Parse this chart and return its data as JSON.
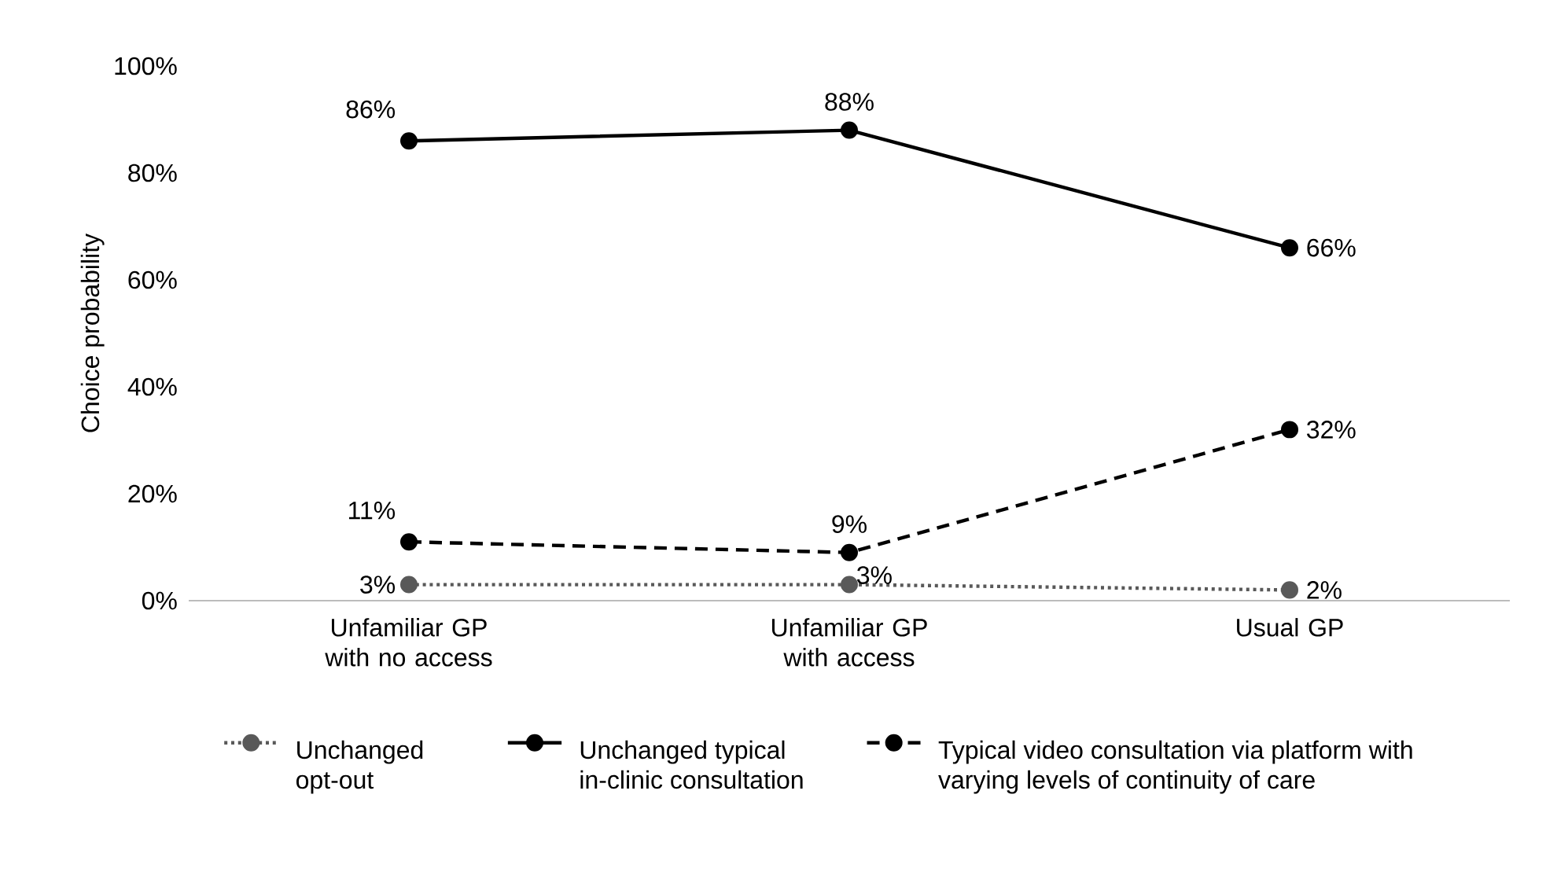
{
  "chart_data": {
    "type": "line",
    "ylabel": "Choice probability",
    "categories": [
      "Unfamiliar GP with no access",
      "Unfamiliar GP with access",
      "Usual GP"
    ],
    "series": [
      {
        "name": "Unchanged opt-out",
        "color": "#595959",
        "line_style": "dotted",
        "values": [
          3,
          3,
          2
        ],
        "value_labels": [
          "3%",
          "3%",
          "2%"
        ]
      },
      {
        "name": "Unchanged typical in-clinic consultation",
        "color": "#000000",
        "line_style": "solid",
        "values": [
          86,
          88,
          66
        ],
        "value_labels": [
          "86%",
          "88%",
          "66%"
        ]
      },
      {
        "name": "Typical video consultation via platform with varying levels of continuity of care",
        "color": "#000000",
        "line_style": "dashed",
        "values": [
          11,
          9,
          32
        ],
        "value_labels": [
          "11%",
          "9%",
          "32%"
        ]
      }
    ],
    "ylim": [
      0,
      100
    ],
    "yticks": [
      {
        "value": 0,
        "label": "0%"
      },
      {
        "value": 20,
        "label": "20%"
      },
      {
        "value": 40,
        "label": "40%"
      },
      {
        "value": 60,
        "label": "60%"
      },
      {
        "value": 80,
        "label": "80%"
      },
      {
        "value": 100,
        "label": "100%"
      }
    ],
    "marker": "circle",
    "grid": false,
    "legend": "bottom"
  }
}
